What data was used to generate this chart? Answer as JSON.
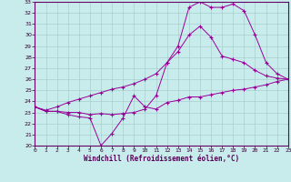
{
  "xlabel": "Windchill (Refroidissement éolien,°C)",
  "bg_color": "#c8ecec",
  "line_color": "#990099",
  "grid_color": "#a0c8c8",
  "xlim": [
    0,
    23
  ],
  "ylim": [
    20,
    33
  ],
  "xticks": [
    0,
    1,
    2,
    3,
    4,
    5,
    6,
    7,
    8,
    9,
    10,
    11,
    12,
    13,
    14,
    15,
    16,
    17,
    18,
    19,
    20,
    21,
    22,
    23
  ],
  "yticks": [
    20,
    21,
    22,
    23,
    24,
    25,
    26,
    27,
    28,
    29,
    30,
    31,
    32,
    33
  ],
  "line1_x": [
    0,
    1,
    2,
    3,
    4,
    5,
    6,
    7,
    8,
    9,
    10,
    11,
    12,
    13,
    14,
    15,
    16,
    17,
    18,
    19,
    20,
    21,
    22,
    23
  ],
  "line1_y": [
    23.5,
    23.1,
    23.1,
    22.8,
    22.6,
    22.5,
    20.0,
    21.1,
    22.5,
    24.5,
    23.5,
    23.3,
    23.9,
    24.1,
    24.4,
    24.4,
    24.6,
    24.8,
    25.0,
    25.1,
    25.3,
    25.5,
    25.8,
    26.0
  ],
  "line2_x": [
    0,
    1,
    2,
    3,
    4,
    5,
    6,
    7,
    8,
    9,
    10,
    11,
    12,
    13,
    14,
    15,
    16,
    17,
    18,
    19,
    20,
    21,
    22,
    23
  ],
  "line2_y": [
    23.5,
    23.1,
    23.1,
    23.0,
    23.0,
    22.8,
    22.9,
    22.8,
    22.9,
    23.0,
    23.3,
    24.5,
    27.5,
    29.0,
    32.5,
    33.0,
    32.5,
    32.5,
    32.8,
    32.2,
    30.0,
    27.5,
    26.5,
    26.0
  ],
  "line3_x": [
    0,
    1,
    2,
    3,
    4,
    5,
    6,
    7,
    8,
    9,
    10,
    11,
    12,
    13,
    14,
    15,
    16,
    17,
    18,
    19,
    20,
    21,
    22,
    23
  ],
  "line3_y": [
    23.5,
    23.2,
    23.5,
    23.9,
    24.2,
    24.5,
    24.8,
    25.1,
    25.3,
    25.6,
    26.0,
    26.5,
    27.5,
    28.5,
    30.0,
    30.8,
    29.8,
    28.1,
    27.8,
    27.5,
    26.8,
    26.3,
    26.1,
    26.0
  ]
}
